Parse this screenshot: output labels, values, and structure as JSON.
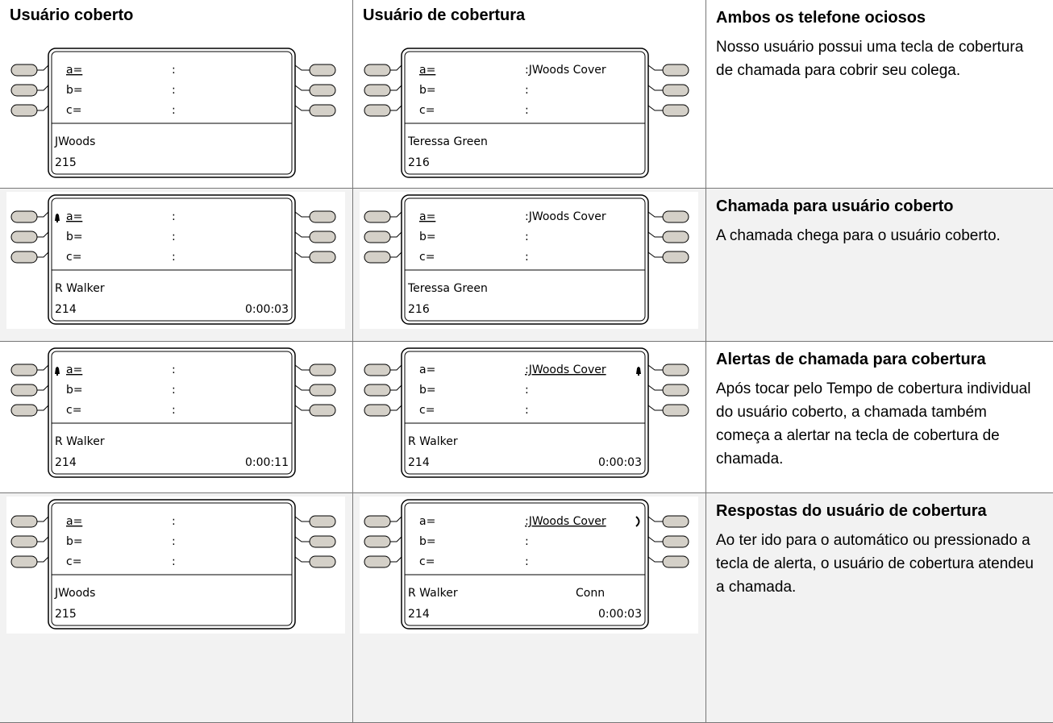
{
  "rows": [
    {
      "cells": [
        {
          "heading": "Usuário coberto",
          "phone": {
            "lines": [
              {
                "key": "a=",
                "value": ":"
              },
              {
                "key": "b=",
                "value": ":"
              },
              {
                "key": "c=",
                "value": ":"
              }
            ],
            "name": "JWoods",
            "number": "215"
          }
        },
        {
          "heading": "Usuário de cobertura",
          "phone": {
            "lines": [
              {
                "key": "a=",
                "value": ":JWoods Cover"
              },
              {
                "key": "b=",
                "value": ":"
              },
              {
                "key": "c=",
                "value": ":"
              }
            ],
            "name": "Teressa Green",
            "number": "216"
          }
        }
      ],
      "title": "Ambos os telefone ociosos",
      "text": "Nosso usuário possui uma tecla de cobertura de chamada para cobrir seu colega."
    },
    {
      "cells": [
        {
          "phone": {
            "lines": [
              {
                "key": "a=",
                "value": ":"
              },
              {
                "key": "b=",
                "value": ":"
              },
              {
                "key": "c=",
                "value": ":"
              }
            ],
            "name": "R Walker",
            "number": "214",
            "time": "0:00:03"
          }
        },
        {
          "phone": {
            "lines": [
              {
                "key": "a=",
                "value": ":JWoods Cover"
              },
              {
                "key": "b=",
                "value": ":"
              },
              {
                "key": "c=",
                "value": ":"
              }
            ],
            "name": "Teressa Green",
            "number": "216"
          }
        }
      ],
      "title": "Chamada para usuário coberto",
      "text": "A chamada chega para o usuário coberto."
    },
    {
      "cells": [
        {
          "phone": {
            "lines": [
              {
                "key": "a=",
                "value": ":"
              },
              {
                "key": "b=",
                "value": ":"
              },
              {
                "key": "c=",
                "value": ":"
              }
            ],
            "name": "R Walker",
            "number": "214",
            "time": "0:00:11"
          }
        },
        {
          "phone": {
            "lines": [
              {
                "key": "a=",
                "value": ":JWoods Cover"
              },
              {
                "key": "b=",
                "value": ":"
              },
              {
                "key": "c=",
                "value": ":"
              }
            ],
            "name": "R Walker",
            "number": "214",
            "time": "0:00:03"
          }
        }
      ],
      "title": "Alertas de chamada para cobertura",
      "text": "Após tocar pelo Tempo de cobertura individual do usuário coberto, a chamada também começa a alertar na tecla de cobertura de chamada."
    },
    {
      "cells": [
        {
          "phone": {
            "lines": [
              {
                "key": "a=",
                "value": ":"
              },
              {
                "key": "b=",
                "value": ":"
              },
              {
                "key": "c=",
                "value": ":"
              }
            ],
            "name": "JWoods",
            "number": "215"
          }
        },
        {
          "phone": {
            "lines": [
              {
                "key": "a=",
                "value": ":JWoods Cover"
              },
              {
                "key": "b=",
                "value": ":"
              },
              {
                "key": "c=",
                "value": ":"
              }
            ],
            "name": "R Walker",
            "status": "Conn",
            "number": "214",
            "time": "0:00:03"
          }
        }
      ],
      "title": "Respostas do usuário de cobertura",
      "text": "Ao ter ido para o automático ou pressionado a tecla de alerta, o usuário de cobertura atendeu a chamada."
    }
  ]
}
